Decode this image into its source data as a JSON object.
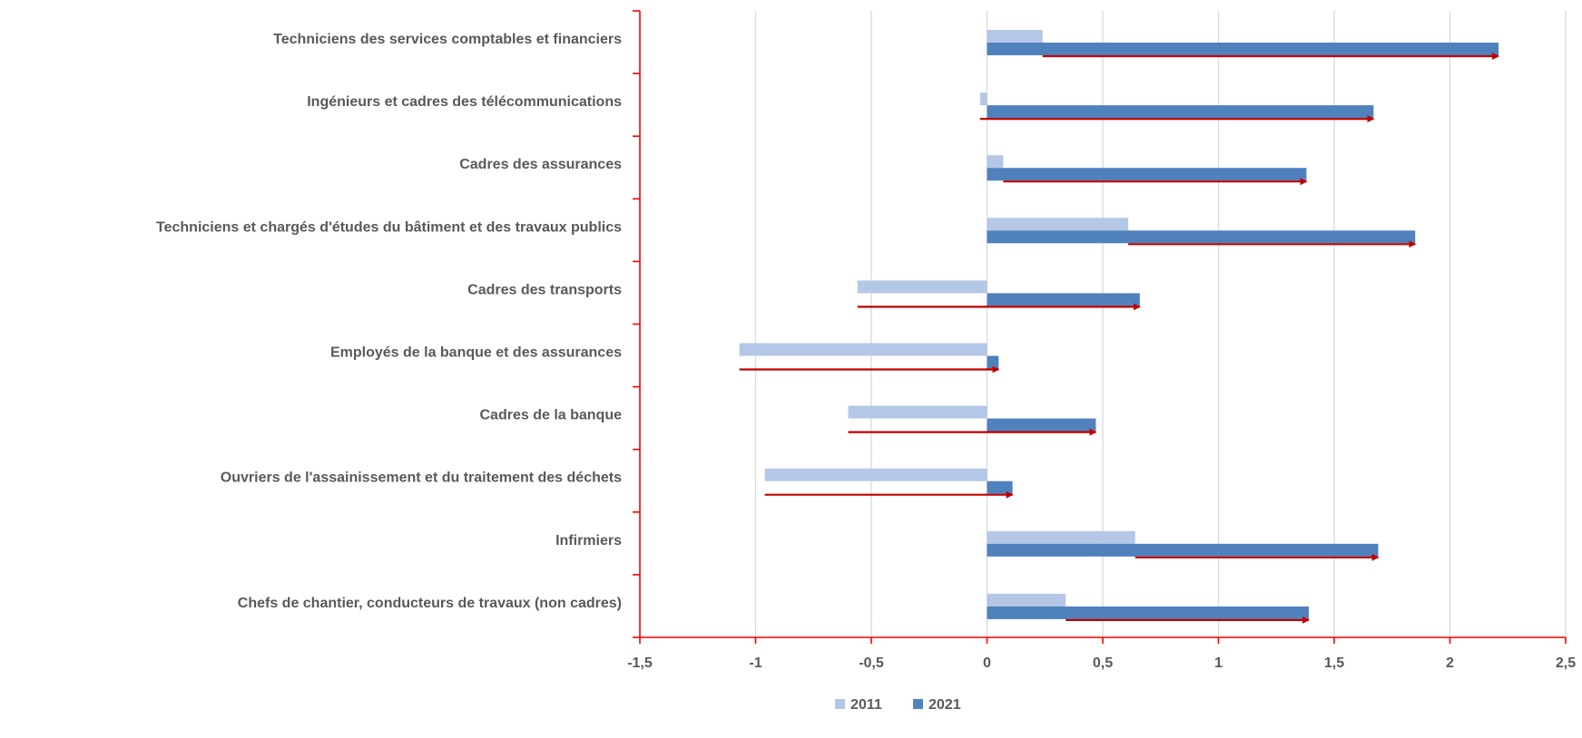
{
  "chart_data": {
    "type": "bar",
    "orientation": "horizontal",
    "categories": [
      "Techniciens des services comptables et financiers",
      "Ingénieurs et cadres des télécommunications",
      "Cadres des assurances",
      "Techniciens et chargés d'études du bâtiment et des travaux publics",
      "Cadres des transports",
      "Employés de la banque et des assurances",
      "Cadres de la banque",
      "Ouvriers de l'assainissement et du traitement des déchets",
      "Infirmiers",
      "Chefs de chantier, conducteurs de travaux (non cadres)"
    ],
    "series": [
      {
        "name": "2011",
        "color": "#b4c7e7",
        "values": [
          0.24,
          -0.03,
          0.07,
          0.61,
          -0.56,
          -1.07,
          -0.6,
          -0.96,
          0.64,
          0.34
        ]
      },
      {
        "name": "2021",
        "color": "#4f81bd",
        "values": [
          2.21,
          1.67,
          1.38,
          1.85,
          0.66,
          0.05,
          0.47,
          0.11,
          1.69,
          1.39
        ]
      }
    ],
    "arrows": {
      "from_series": "2011",
      "to_series": "2021",
      "color": "#c00000"
    },
    "xlim": [
      -1.5,
      2.5
    ],
    "xticks": [
      -1.5,
      -1,
      -0.5,
      0,
      0.5,
      1,
      1.5,
      2,
      2.5
    ],
    "xtick_labels": [
      "-1,5",
      "-1",
      "-0,5",
      "0",
      "0,5",
      "1",
      "1,5",
      "2",
      "2,5"
    ],
    "grid": "vertical",
    "axis_color": "#ff0000",
    "grid_color": "#d9d9d9",
    "legend_position": "bottom",
    "title": "",
    "xlabel": "",
    "ylabel": ""
  }
}
